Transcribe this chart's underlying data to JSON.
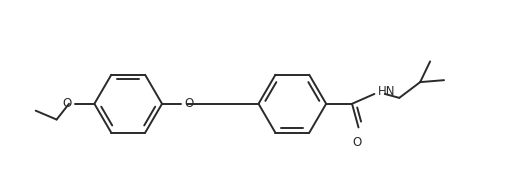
{
  "bg_color": "#ffffff",
  "line_color": "#2a2a2a",
  "line_width": 1.4,
  "dbo": 0.09,
  "font_size": 8.5,
  "figsize": [
    5.24,
    1.8
  ],
  "dpi": 100,
  "xlim": [
    0,
    10.48
  ],
  "ylim": [
    0,
    3.6
  ]
}
